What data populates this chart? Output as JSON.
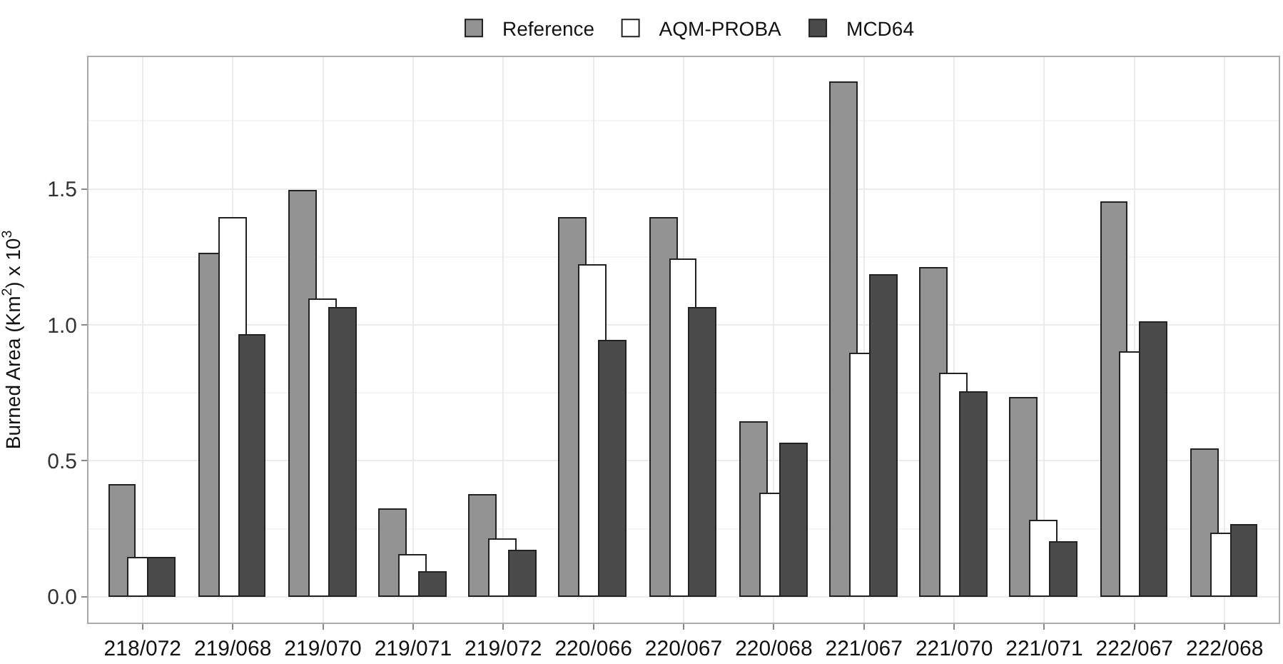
{
  "chart_data": {
    "type": "bar",
    "ylabel": "Burned Area (Km$^{2}$) x 10$^{3}$",
    "categories": [
      "218/072",
      "219/068",
      "219/070",
      "219/071",
      "219/072",
      "220/066",
      "220/067",
      "220/068",
      "221/067",
      "221/070",
      "221/071",
      "222/067",
      "222/068"
    ],
    "series": [
      {
        "name": "Reference",
        "color": "#939393",
        "values": [
          0.41,
          1.26,
          1.49,
          0.32,
          0.37,
          1.39,
          1.39,
          0.64,
          1.89,
          1.21,
          0.73,
          1.45,
          0.54
        ]
      },
      {
        "name": "AQM-PROBA",
        "color": "#ffffff",
        "values": [
          0.14,
          1.39,
          1.09,
          0.15,
          0.21,
          1.22,
          1.24,
          0.38,
          0.89,
          0.82,
          0.28,
          0.9,
          0.23
        ]
      },
      {
        "name": "MCD64",
        "color": "#4b4b4b",
        "values": [
          0.14,
          0.96,
          1.06,
          0.09,
          0.17,
          0.94,
          1.06,
          0.56,
          1.18,
          0.75,
          0.2,
          1.01,
          0.26
        ]
      }
    ],
    "ylim": [
      -0.095,
      1.985
    ],
    "yticks": [
      {
        "value": 0,
        "label": "0.0"
      },
      0.5,
      {
        "value": 1,
        "label": "1.0"
      },
      1.5
    ],
    "grid": true,
    "legend": "top"
  }
}
